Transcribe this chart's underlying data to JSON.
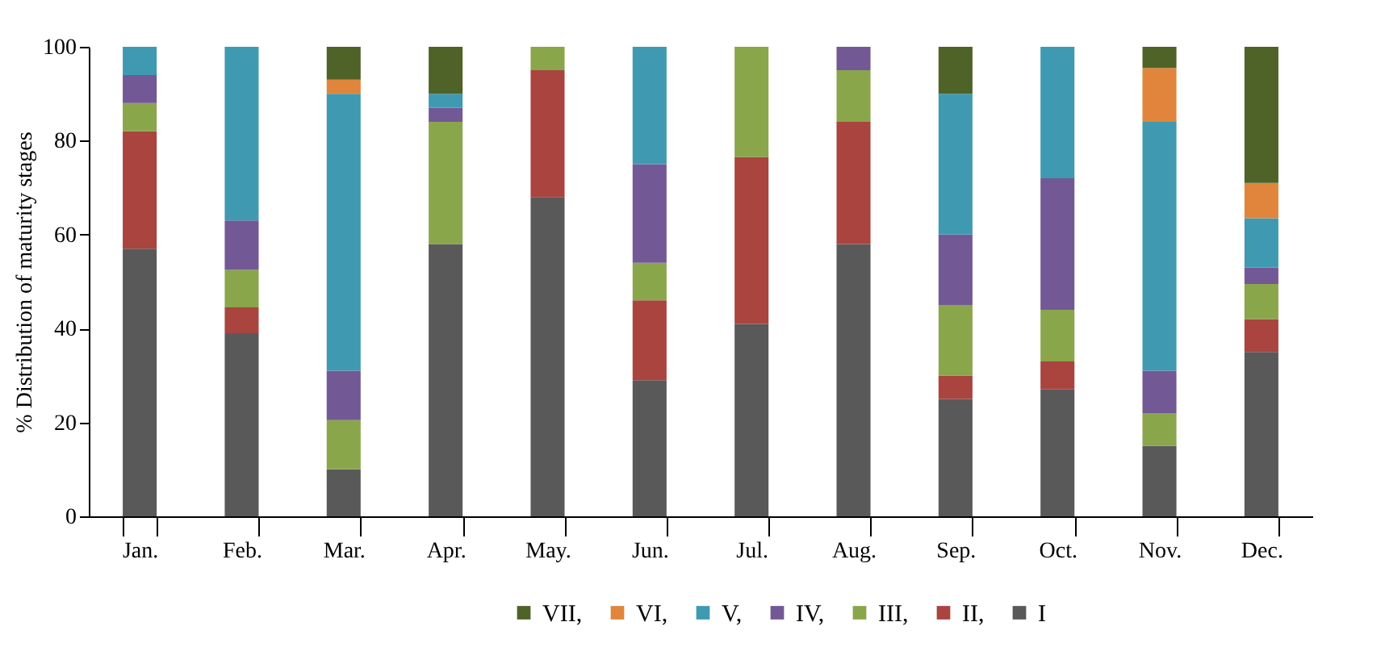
{
  "chart_data": {
    "type": "bar",
    "stacked": true,
    "ylabel": "% Distribution of maturity stages",
    "categories": [
      "Jan.",
      "Feb.",
      "Mar.",
      "Apr.",
      "May.",
      "Jun.",
      "Jul.",
      "Aug.",
      "Sep.",
      "Oct.",
      "Nov.",
      "Dec."
    ],
    "series": [
      {
        "name": "I",
        "color": "#595959",
        "values": [
          57,
          39,
          10,
          58,
          68,
          29,
          41,
          58,
          25,
          27,
          15,
          35
        ]
      },
      {
        "name": "II,",
        "color": "#a9443f",
        "values": [
          25,
          5.5,
          0,
          0,
          27,
          17,
          35.5,
          26,
          5,
          6,
          0,
          7
        ]
      },
      {
        "name": "III,",
        "color": "#8aa64b",
        "values": [
          6,
          8,
          10.5,
          26,
          5,
          8,
          23.5,
          11,
          15,
          11,
          7,
          7.5
        ]
      },
      {
        "name": "IV,",
        "color": "#735896",
        "values": [
          6,
          10.5,
          10.5,
          3,
          0,
          21,
          0,
          5,
          15,
          28,
          9,
          3.5
        ]
      },
      {
        "name": "V,",
        "color": "#3f9ab1",
        "values": [
          6,
          37,
          59,
          3,
          0,
          25,
          0,
          0,
          30,
          28,
          53,
          10.5
        ]
      },
      {
        "name": "VI,",
        "color": "#e0853b",
        "values": [
          0,
          0,
          3,
          0,
          0,
          0,
          0,
          0,
          0,
          0,
          11.5,
          7.5
        ]
      },
      {
        "name": "VII,",
        "color": "#4f6228",
        "values": [
          0,
          0,
          7,
          10,
          0,
          0,
          0,
          0,
          10,
          0,
          4.5,
          29
        ]
      }
    ],
    "ylim": [
      0,
      100
    ],
    "yticks": [
      0,
      20,
      40,
      60,
      80,
      100
    ],
    "grid": false,
    "legend": "bottom"
  }
}
